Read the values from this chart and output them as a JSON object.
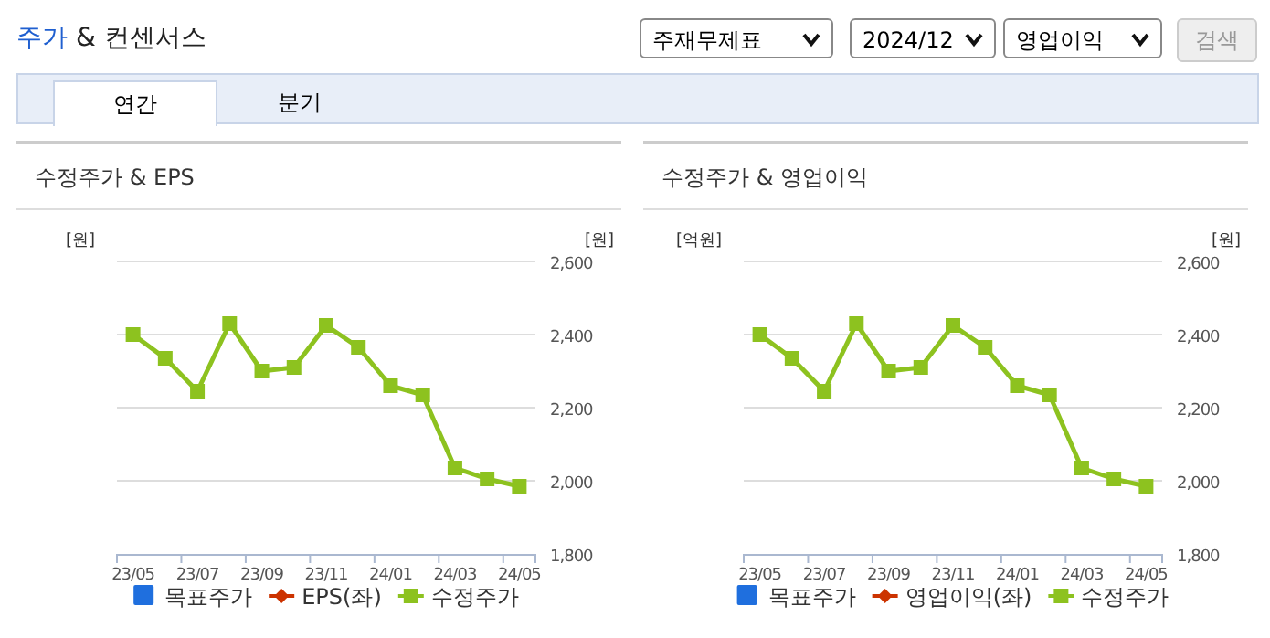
{
  "chart_data": [
    {
      "type": "other",
      "title": "주가 & 컨센서스",
      "annotations": [
        "주재무제표",
        "2024/12",
        "영업이익",
        "검색",
        "연간",
        "분기"
      ]
    },
    {
      "type": "line",
      "title": "수정주가 & EPS",
      "ylabel": "[원]",
      "y2label": "[원]",
      "categories": [
        "23/05",
        null,
        "23/07",
        null,
        "23/09",
        null,
        "23/11",
        null,
        "24/01",
        null,
        "24/03",
        null,
        "24/05"
      ],
      "y2lim": [
        1800,
        2600
      ],
      "y2ticks": [
        {
          "value": 1800,
          "label": "1,800"
        },
        {
          "value": 2000,
          "label": "2,000"
        },
        {
          "value": 2200,
          "label": "2,200"
        },
        {
          "value": 2400,
          "label": "2,400"
        },
        {
          "value": 2600,
          "label": "2,600"
        }
      ],
      "grid": "y",
      "legend": "bottom",
      "series": [
        {
          "name": "목표주가",
          "type": "bar",
          "color": "#1f6fde",
          "values": [
            null,
            null,
            null,
            null,
            null,
            null,
            null,
            null,
            null,
            null,
            null,
            null,
            null
          ]
        },
        {
          "name": "EPS(좌)",
          "type": "line",
          "marker": "diamond",
          "color": "#cc3300",
          "values": [
            null,
            null,
            null,
            null,
            null,
            null,
            null,
            null,
            null,
            null,
            null,
            null,
            null
          ]
        },
        {
          "name": "수정주가",
          "type": "line",
          "marker": "square",
          "axis": "y2",
          "color": "#8dc21f",
          "values": [
            2400,
            2335,
            2245,
            2430,
            2300,
            2310,
            2425,
            2365,
            2260,
            2235,
            2035,
            2005,
            1985
          ]
        }
      ]
    },
    {
      "type": "line",
      "title": "수정주가 & 영업이익",
      "ylabel": "[억원]",
      "y2label": "[원]",
      "categories": [
        "23/05",
        null,
        "23/07",
        null,
        "23/09",
        null,
        "23/11",
        null,
        "24/01",
        null,
        "24/03",
        null,
        "24/05"
      ],
      "y2lim": [
        1800,
        2600
      ],
      "y2ticks": [
        {
          "value": 1800,
          "label": "1,800"
        },
        {
          "value": 2000,
          "label": "2,000"
        },
        {
          "value": 2200,
          "label": "2,200"
        },
        {
          "value": 2400,
          "label": "2,400"
        },
        {
          "value": 2600,
          "label": "2,600"
        }
      ],
      "grid": "y",
      "legend": "bottom",
      "series": [
        {
          "name": "목표주가",
          "type": "bar",
          "color": "#1f6fde",
          "values": [
            null,
            null,
            null,
            null,
            null,
            null,
            null,
            null,
            null,
            null,
            null,
            null,
            null
          ]
        },
        {
          "name": "영업이익(좌)",
          "type": "line",
          "marker": "diamond",
          "color": "#cc3300",
          "values": [
            null,
            null,
            null,
            null,
            null,
            null,
            null,
            null,
            null,
            null,
            null,
            null,
            null
          ]
        },
        {
          "name": "수정주가",
          "type": "line",
          "marker": "square",
          "axis": "y2",
          "color": "#8dc21f",
          "values": [
            2400,
            2335,
            2245,
            2430,
            2300,
            2310,
            2425,
            2365,
            2260,
            2235,
            2035,
            2005,
            1985
          ]
        }
      ]
    }
  ]
}
